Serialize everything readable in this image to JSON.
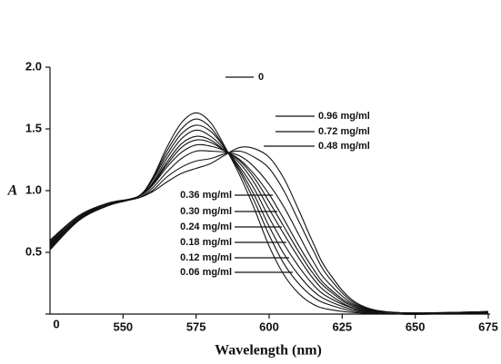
{
  "chart_data": {
    "type": "line",
    "x_label": "Wavelength (nm)",
    "y_label": "A",
    "color": "#111111",
    "x": [
      525,
      535,
      545,
      555,
      560,
      565,
      570,
      575,
      580,
      585,
      590,
      595,
      600,
      605,
      610,
      615,
      620,
      630,
      645,
      675
    ],
    "series": [
      {
        "name": "0",
        "values": [
          0.52,
          0.76,
          0.88,
          0.95,
          1.1,
          1.35,
          1.55,
          1.63,
          1.55,
          1.35,
          1.12,
          0.85,
          0.55,
          0.32,
          0.17,
          0.08,
          0.04,
          0.01,
          0.0,
          0.01
        ]
      },
      {
        "name": "0.96 mg/ml",
        "values": [
          0.6,
          0.8,
          0.9,
          0.94,
          0.99,
          1.07,
          1.14,
          1.18,
          1.22,
          1.29,
          1.35,
          1.34,
          1.27,
          1.1,
          0.85,
          0.58,
          0.35,
          0.09,
          0.01,
          0.02
        ]
      },
      {
        "name": "0.72 mg/ml",
        "values": [
          0.59,
          0.79,
          0.9,
          0.94,
          1.0,
          1.11,
          1.19,
          1.24,
          1.26,
          1.3,
          1.32,
          1.27,
          1.18,
          1.0,
          0.76,
          0.52,
          0.31,
          0.08,
          0.01,
          0.02
        ]
      },
      {
        "name": "0.48 mg/ml",
        "values": [
          0.58,
          0.79,
          0.89,
          0.94,
          1.02,
          1.15,
          1.26,
          1.32,
          1.32,
          1.31,
          1.28,
          1.19,
          1.05,
          0.87,
          0.65,
          0.43,
          0.26,
          0.07,
          0.01,
          0.02
        ]
      },
      {
        "name": "0.36 mg/ml",
        "values": [
          0.57,
          0.78,
          0.89,
          0.95,
          1.04,
          1.19,
          1.31,
          1.37,
          1.36,
          1.32,
          1.25,
          1.13,
          0.97,
          0.77,
          0.56,
          0.37,
          0.22,
          0.06,
          0.01,
          0.02
        ]
      },
      {
        "name": "0.30 mg/ml",
        "values": [
          0.56,
          0.78,
          0.89,
          0.95,
          1.05,
          1.21,
          1.35,
          1.41,
          1.39,
          1.32,
          1.24,
          1.1,
          0.91,
          0.71,
          0.51,
          0.33,
          0.2,
          0.05,
          0.01,
          0.02
        ]
      },
      {
        "name": "0.24 mg/ml",
        "values": [
          0.55,
          0.78,
          0.89,
          0.95,
          1.05,
          1.23,
          1.38,
          1.44,
          1.41,
          1.32,
          1.22,
          1.06,
          0.85,
          0.65,
          0.46,
          0.29,
          0.17,
          0.04,
          0.0,
          0.01
        ]
      },
      {
        "name": "0.18 mg/ml",
        "values": [
          0.55,
          0.77,
          0.89,
          0.95,
          1.06,
          1.26,
          1.42,
          1.49,
          1.44,
          1.33,
          1.19,
          1.01,
          0.78,
          0.57,
          0.39,
          0.24,
          0.14,
          0.04,
          0.0,
          0.01
        ]
      },
      {
        "name": "0.12 mg/ml",
        "values": [
          0.54,
          0.77,
          0.88,
          0.95,
          1.08,
          1.29,
          1.46,
          1.53,
          1.48,
          1.34,
          1.17,
          0.96,
          0.71,
          0.49,
          0.32,
          0.19,
          0.11,
          0.03,
          0.0,
          0.01
        ]
      },
      {
        "name": "0.06 mg/ml",
        "values": [
          0.53,
          0.76,
          0.88,
          0.95,
          1.09,
          1.32,
          1.5,
          1.58,
          1.51,
          1.34,
          1.15,
          0.91,
          0.64,
          0.41,
          0.25,
          0.14,
          0.08,
          0.02,
          0.0,
          0.01
        ]
      }
    ],
    "xlim": [
      525,
      675
    ],
    "xticks": [
      550,
      575,
      600,
      625,
      650,
      675
    ],
    "ylim": [
      0,
      2
    ],
    "yticks": [
      0,
      0.5,
      {
        "value": 1,
        "label": "1.0"
      },
      1.5,
      {
        "value": 2,
        "label": "2.0"
      }
    ]
  }
}
